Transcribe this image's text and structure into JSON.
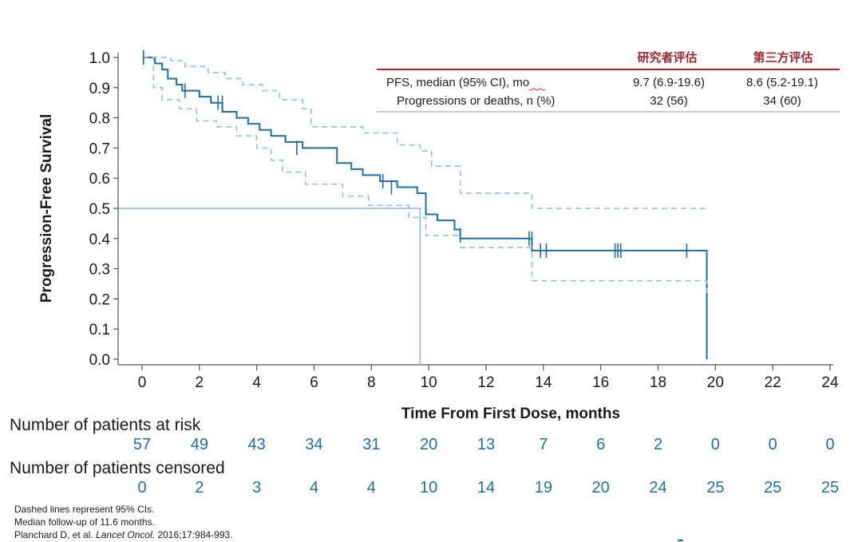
{
  "chart_data": {
    "type": "line",
    "title": "",
    "xlabel": "Time From First Dose, months",
    "ylabel": "Progression-Free Survival",
    "xlim": [
      0,
      24
    ],
    "ylim": [
      0,
      1.0
    ],
    "x_ticks": [
      0,
      2,
      4,
      6,
      8,
      10,
      12,
      14,
      16,
      18,
      20,
      22,
      24
    ],
    "y_ticks": [
      0.0,
      0.1,
      0.2,
      0.3,
      0.4,
      0.5,
      0.6,
      0.7,
      0.8,
      0.9,
      1.0
    ],
    "y_tick_labels": [
      "0.0",
      "0.1",
      "0.2",
      "0.3",
      "0.4",
      "0.5",
      "0.6",
      "0.7",
      "0.8",
      "0.9",
      "1.0"
    ],
    "grid": false,
    "colors": {
      "curve": "#1b6fa8",
      "ci": "#8ec0e0",
      "median_line": "#8ab9dc",
      "table_rule": "#a4262c",
      "risk_numbers": "#1b6fa8"
    },
    "series": [
      {
        "name": "PFS",
        "style": "solid",
        "x": [
          0,
          0.45,
          0.7,
          0.9,
          1.2,
          1.4,
          2.0,
          2.4,
          2.8,
          3.3,
          3.7,
          4.1,
          4.5,
          5.0,
          5.6,
          6.8,
          7.3,
          7.7,
          8.3,
          8.9,
          9.6,
          9.9,
          10.3,
          10.9,
          11.1,
          13.6,
          19.7,
          19.7
        ],
        "y": [
          1.0,
          0.98,
          0.96,
          0.93,
          0.91,
          0.89,
          0.87,
          0.85,
          0.82,
          0.8,
          0.78,
          0.76,
          0.74,
          0.72,
          0.7,
          0.65,
          0.63,
          0.61,
          0.59,
          0.57,
          0.55,
          0.48,
          0.46,
          0.43,
          0.4,
          0.36,
          0.36,
          0.0
        ]
      },
      {
        "name": "95% CI upper",
        "style": "dashed",
        "x": [
          0,
          1.0,
          1.5,
          2.3,
          2.9,
          3.5,
          4.2,
          4.8,
          5.6,
          5.9,
          7.7,
          8.9,
          9.7,
          10.1,
          11.1,
          13.6,
          19.7
        ],
        "y": [
          1.0,
          0.99,
          0.97,
          0.95,
          0.93,
          0.91,
          0.89,
          0.86,
          0.83,
          0.77,
          0.75,
          0.71,
          0.69,
          0.64,
          0.55,
          0.5,
          0.5
        ]
      },
      {
        "name": "95% CI lower",
        "style": "dashed",
        "x": [
          0,
          0.4,
          0.7,
          1.3,
          1.9,
          2.6,
          3.3,
          4.0,
          4.5,
          4.9,
          5.7,
          7.0,
          7.9,
          9.3,
          9.9,
          11.1,
          13.6,
          19.7
        ],
        "y": [
          1.0,
          0.9,
          0.86,
          0.83,
          0.79,
          0.77,
          0.74,
          0.7,
          0.66,
          0.62,
          0.58,
          0.54,
          0.51,
          0.47,
          0.41,
          0.37,
          0.26,
          0.22
        ]
      }
    ],
    "censor_marks": {
      "x": [
        0.05,
        1.5,
        2.65,
        2.8,
        5.4,
        8.4,
        8.7,
        11.1,
        13.5,
        13.6,
        13.9,
        14.1,
        16.5,
        16.6,
        16.7,
        19.0
      ],
      "y": [
        1.0,
        0.89,
        0.85,
        0.85,
        0.7,
        0.59,
        0.57,
        0.41,
        0.4,
        0.4,
        0.36,
        0.36,
        0.36,
        0.36,
        0.36,
        0.36
      ]
    },
    "median_marker": {
      "x": 9.7,
      "y": 0.5
    },
    "risk_table": {
      "at_risk_title": "Number of patients at risk",
      "at_risk": [
        "57",
        "49",
        "43",
        "34",
        "31",
        "20",
        "13",
        "7",
        "6",
        "2",
        "0",
        "0",
        "0"
      ],
      "censored_title": "Number of patients censored",
      "censored": [
        "0",
        "2",
        "3",
        "4",
        "4",
        "10",
        "14",
        "19",
        "20",
        "24",
        "25",
        "25",
        "25"
      ]
    },
    "summary_table": {
      "headers": [
        "研究者评估",
        "第三方评估"
      ],
      "rows": [
        {
          "label": "PFS, median (95% CI), mo",
          "values": [
            "9.7 (6.9-19.6)",
            "8.6 (5.2-19.1)"
          ]
        },
        {
          "label": "Progressions or deaths, n (%)",
          "values": [
            "32 (56)",
            "34 (60)"
          ]
        }
      ]
    }
  },
  "footnotes": [
    "Dashed lines represent 95% CIs.",
    "Median follow-up of 11.6 months."
  ],
  "citation": {
    "authors": "Planchard D, et al. ",
    "journal": "Lancet Oncol",
    "details": ". 2016;17:984-993."
  }
}
